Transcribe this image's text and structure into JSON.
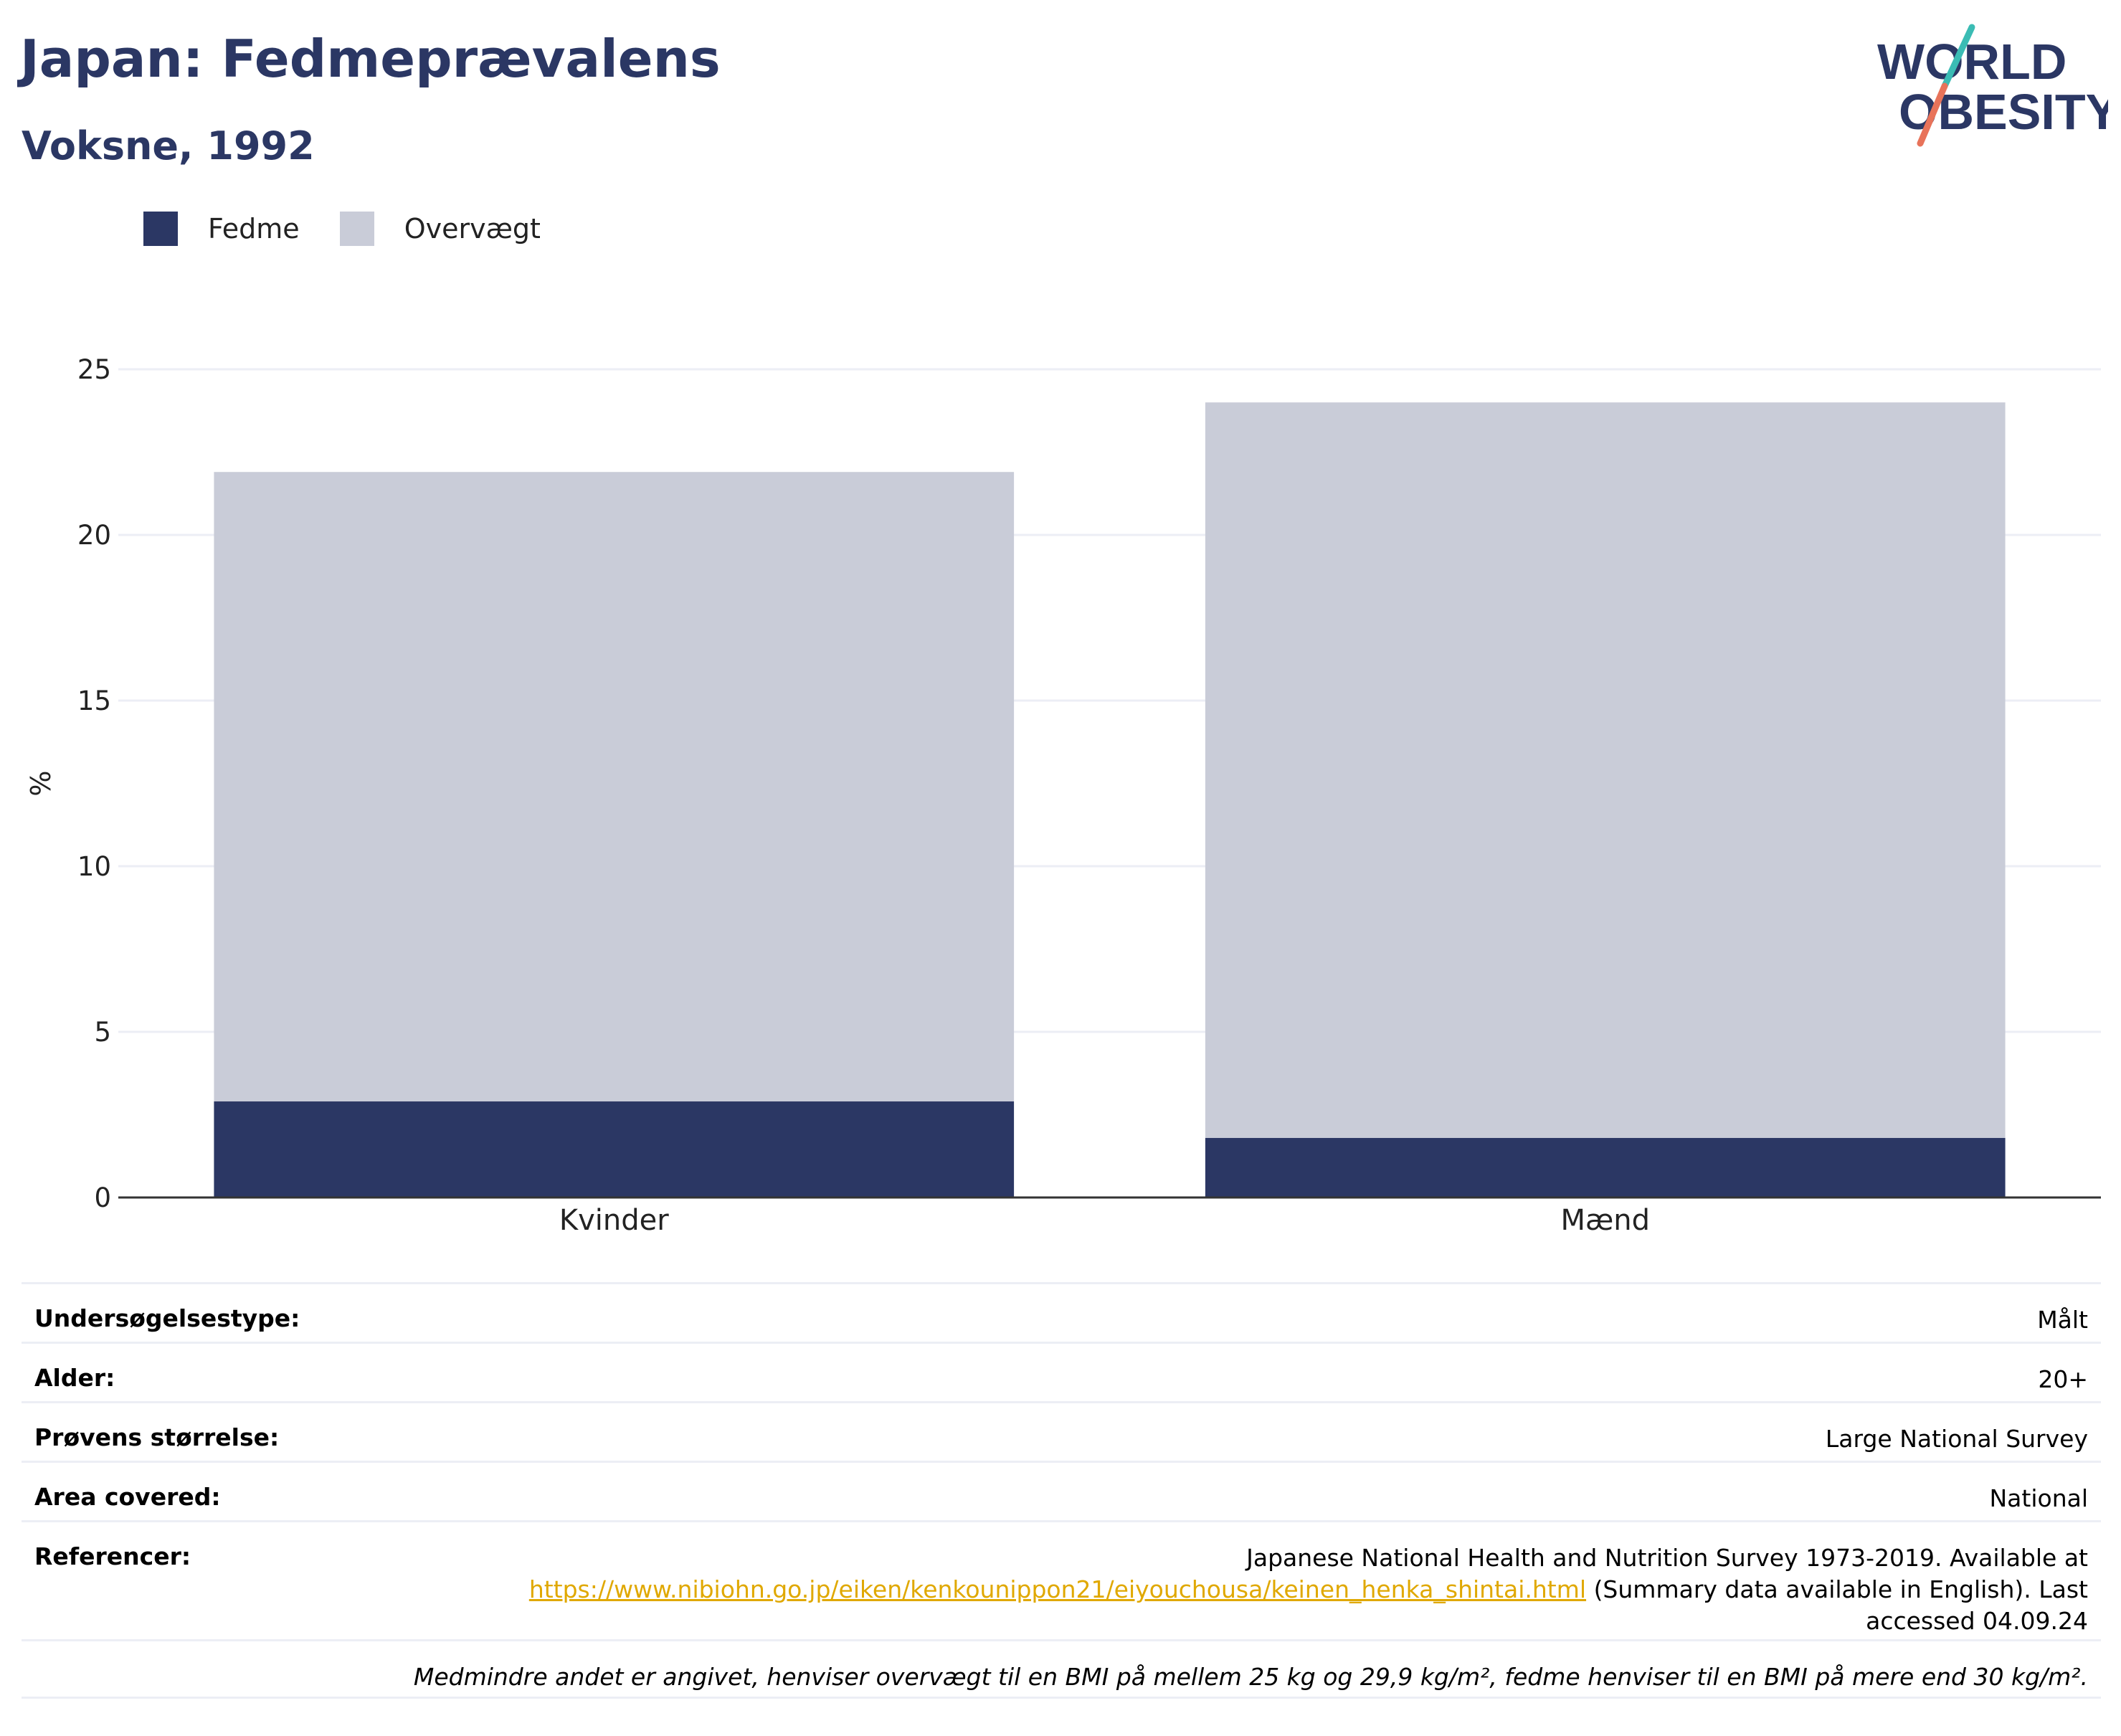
{
  "title": "Japan: Fedmeprævalens",
  "subtitle": "Voksne, 1992",
  "logo": {
    "line1": "WORLD",
    "line2": "OBESITY"
  },
  "colors": {
    "obesity": "#2b3764",
    "overweight": "#c9ccd8",
    "title": "#2b3764",
    "link": "#e0a800",
    "logo_teal": "#3bbcb4",
    "logo_coral": "#e8735a"
  },
  "legend": [
    {
      "label": "Fedme",
      "color": "#2b3764"
    },
    {
      "label": "Overvægt",
      "color": "#c9ccd8"
    }
  ],
  "chart_data": {
    "type": "bar",
    "stacked": true,
    "categories": [
      "Kvinder",
      "Mænd"
    ],
    "series": [
      {
        "name": "Fedme",
        "values": [
          2.9,
          1.8
        ]
      },
      {
        "name": "Overvægt",
        "values": [
          19.0,
          22.2
        ]
      }
    ],
    "ylabel": "%",
    "ylim": [
      0,
      25
    ],
    "yticks": [
      0,
      5,
      10,
      15,
      20,
      25
    ],
    "grid": true,
    "legend_position": "top-left"
  },
  "info": {
    "survey_type": {
      "label": "Undersøgelsestype:",
      "value": "Målt"
    },
    "age": {
      "label": "Alder:",
      "value": "20+"
    },
    "sample_size": {
      "label": "Prøvens størrelse:",
      "value": "Large National Survey"
    },
    "area": {
      "label": "Area covered:",
      "value": "National"
    },
    "references": {
      "label": "Referencer:",
      "text_before": "Japanese National Health and Nutrition Survey 1973-2019. Available at",
      "link": "https://www.nibiohn.go.jp/eiken/kenkounippon21/eiyouchousa/keinen_henka_shintai.html",
      "text_after": "(Summary data available in English). Last",
      "text_end": "accessed 04.09.24"
    },
    "footnote": "Medmindre andet er angivet, henviser overvægt til en BMI på mellem 25 kg og 29,9 kg/m², fedme henviser til en BMI på mere end 30 kg/m²."
  }
}
